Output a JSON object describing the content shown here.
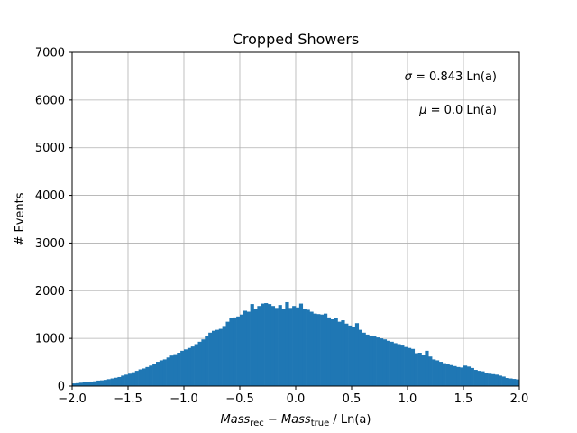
{
  "chart_data": {
    "type": "bar",
    "title": "Cropped Showers",
    "ylabel": "# Events",
    "xlabel": {
      "first": "Mass",
      "first_sub": "rec",
      "op": " − ",
      "second": "Mass",
      "second_sub": "true",
      "unit": " / Ln(a)"
    },
    "xlim": [
      -2.0,
      2.0
    ],
    "ylim": [
      0,
      7000
    ],
    "xticks": [
      -2.0,
      -1.5,
      -1.0,
      -0.5,
      0.0,
      0.5,
      1.0,
      1.5,
      2.0
    ],
    "xtick_labels": [
      "−2.0",
      "−1.5",
      "−1.0",
      "−0.5",
      "0.0",
      "0.5",
      "1.0",
      "1.5",
      "2.0"
    ],
    "yticks": [
      0,
      1000,
      2000,
      3000,
      4000,
      5000,
      6000,
      7000
    ],
    "ytick_labels": [
      "0",
      "1000",
      "2000",
      "3000",
      "4000",
      "5000",
      "6000",
      "7000"
    ],
    "grid": true,
    "bar_color": "#1f77b4",
    "bin_start": -2.0,
    "bin_width": 0.03125,
    "values": [
      55,
      60,
      70,
      80,
      85,
      95,
      100,
      115,
      120,
      130,
      145,
      160,
      175,
      190,
      220,
      240,
      260,
      290,
      320,
      350,
      370,
      400,
      430,
      470,
      510,
      540,
      560,
      600,
      640,
      670,
      700,
      740,
      770,
      800,
      830,
      880,
      930,
      980,
      1050,
      1120,
      1160,
      1180,
      1200,
      1260,
      1350,
      1430,
      1440,
      1460,
      1500,
      1580,
      1560,
      1720,
      1620,
      1680,
      1730,
      1740,
      1720,
      1680,
      1640,
      1700,
      1620,
      1760,
      1640,
      1680,
      1650,
      1730,
      1620,
      1600,
      1560,
      1520,
      1510,
      1500,
      1520,
      1440,
      1400,
      1420,
      1350,
      1380,
      1310,
      1270,
      1230,
      1320,
      1180,
      1120,
      1080,
      1060,
      1040,
      1020,
      1000,
      980,
      950,
      930,
      900,
      880,
      850,
      820,
      800,
      780,
      690,
      700,
      660,
      740,
      620,
      560,
      540,
      510,
      480,
      470,
      440,
      420,
      400,
      390,
      430,
      410,
      380,
      340,
      320,
      310,
      280,
      260,
      250,
      240,
      220,
      200,
      170,
      160,
      150,
      140
    ]
  },
  "annotations": {
    "sigma_symbol": "σ",
    "sigma_text": " = 0.843 Ln(a)",
    "mu_symbol": "μ",
    "mu_text": " = 0.0 Ln(a)"
  }
}
